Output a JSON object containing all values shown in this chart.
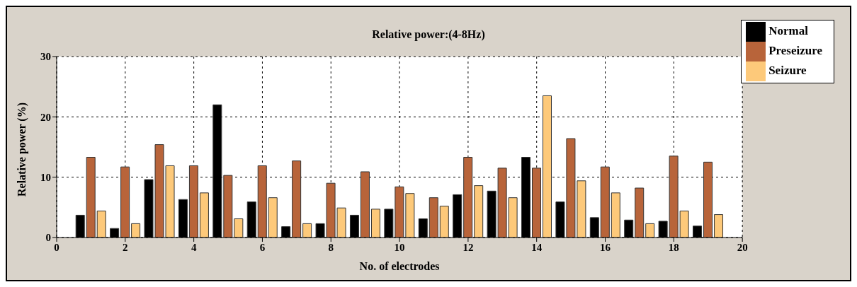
{
  "chart_data": {
    "type": "bar",
    "title": "Relative power:(4-8Hz)",
    "xlabel": "No. of electrodes",
    "ylabel": "Relative power (%)",
    "x": [
      1,
      2,
      3,
      4,
      5,
      6,
      7,
      8,
      9,
      10,
      11,
      12,
      13,
      14,
      15,
      16,
      17,
      18,
      19
    ],
    "series": [
      {
        "name": "Normal",
        "color": "#000000",
        "values": [
          3.7,
          1.5,
          9.6,
          6.3,
          22,
          5.9,
          1.8,
          2.3,
          3.7,
          4.7,
          3.1,
          7.1,
          7.7,
          13.3,
          5.9,
          3.3,
          2.9,
          2.7,
          1.9
        ]
      },
      {
        "name": "Preseizure",
        "color": "#b8643a",
        "values": [
          13.3,
          11.7,
          15.4,
          11.9,
          10.3,
          11.9,
          12.7,
          9,
          10.9,
          8.4,
          6.6,
          13.3,
          11.5,
          11.5,
          16.4,
          11.7,
          8.2,
          13.5,
          12.5
        ]
      },
      {
        "name": "Seizure",
        "color": "#fdc97a",
        "values": [
          4.4,
          2.3,
          11.9,
          7.4,
          3.1,
          6.6,
          2.3,
          4.9,
          4.7,
          7.3,
          5.2,
          8.6,
          6.6,
          23.5,
          9.4,
          7.4,
          2.3,
          4.4,
          3.8
        ]
      }
    ],
    "xlim": [
      0,
      20
    ],
    "xticks": [
      0,
      2,
      4,
      6,
      8,
      10,
      12,
      14,
      16,
      18,
      20
    ],
    "ylim": [
      0,
      30
    ],
    "yticks": [
      0,
      10,
      20,
      30
    ],
    "grid": true,
    "legend": "top right"
  }
}
